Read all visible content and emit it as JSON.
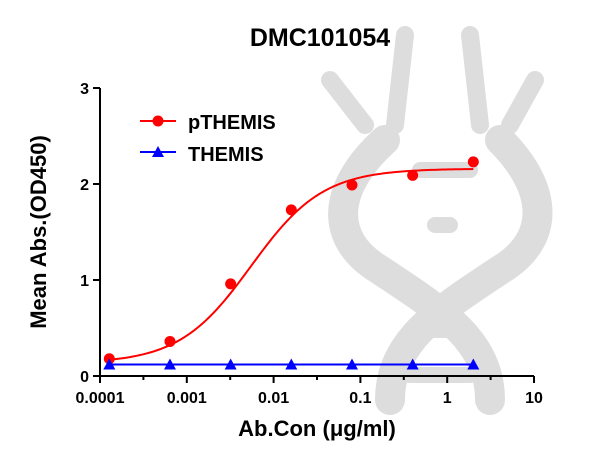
{
  "chart_data": {
    "type": "scatter",
    "title": "DMC101054",
    "xlabel": "Ab.Con (μg/ml)",
    "ylabel": "Mean Abs.(OD450)",
    "x_scale": "log",
    "xlim": [
      0.0001,
      10
    ],
    "ylim": [
      0,
      3
    ],
    "x_ticks": [
      "0.0001",
      "0.001",
      "0.01",
      "0.1",
      "1",
      "10"
    ],
    "y_ticks": [
      "0",
      "1",
      "2",
      "3"
    ],
    "grid": false,
    "legend_position": "top-left",
    "series": [
      {
        "name": "pTHEMIS",
        "color": "#ff0000",
        "marker": "circle",
        "fit": "4PL sigmoid",
        "x": [
          0.000128,
          0.00064,
          0.0032,
          0.016,
          0.08,
          0.4,
          2
        ],
        "y": [
          0.18,
          0.36,
          0.96,
          1.73,
          1.99,
          2.09,
          2.23
        ]
      },
      {
        "name": "THEMIS",
        "color": "#0000ff",
        "marker": "triangle",
        "fit": "line",
        "x": [
          0.000128,
          0.00064,
          0.0032,
          0.016,
          0.08,
          0.4,
          2
        ],
        "y": [
          0.12,
          0.12,
          0.12,
          0.12,
          0.12,
          0.12,
          0.12
        ]
      }
    ]
  }
}
